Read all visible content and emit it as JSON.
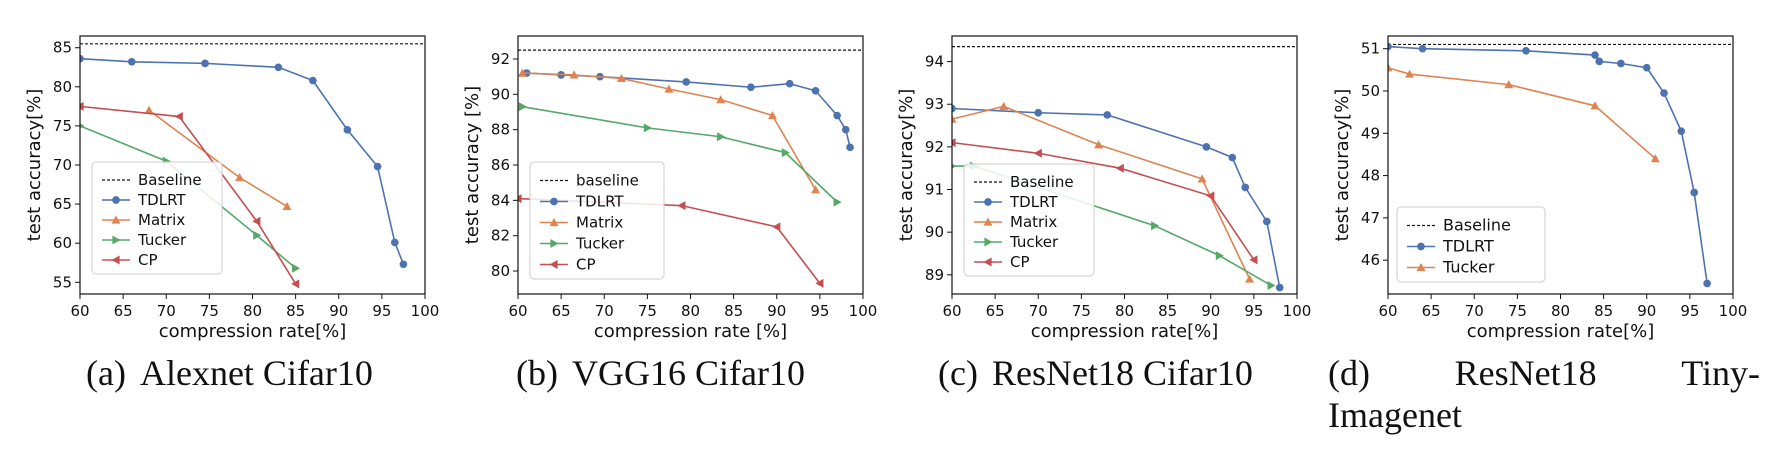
{
  "chart_data": [
    {
      "type": "line",
      "caption_tag": "(a)",
      "caption_text": "Alexnet Cifar10",
      "xlabel": "compression rate[%]",
      "ylabel": "test accuracy[%]",
      "xlim": [
        60,
        100
      ],
      "ylim": [
        53.5,
        86.5
      ],
      "xticks": [
        "60",
        "65",
        "70",
        "75",
        "80",
        "85",
        "90",
        "95",
        "100"
      ],
      "yticks": [
        "55",
        "60",
        "65",
        "70",
        "75",
        "80",
        "85"
      ],
      "legend_position": "lower-left",
      "baseline": {
        "name": "Baseline",
        "value": 85.5
      },
      "series": [
        {
          "name": "TDLRT",
          "color": "#4c72b0",
          "marker": "circle",
          "x": [
            60,
            66,
            74.5,
            83,
            87,
            91,
            94.5,
            96.5,
            97.5
          ],
          "y": [
            83.6,
            83.2,
            83.0,
            82.5,
            80.8,
            74.5,
            69.8,
            60.1,
            57.3
          ]
        },
        {
          "name": "Matrix",
          "color": "#dd8452",
          "marker": "triangle-up",
          "x": [
            68,
            78.5,
            84
          ],
          "y": [
            77.0,
            68.4,
            64.7
          ]
        },
        {
          "name": "Tucker",
          "color": "#55a868",
          "marker": "triangle-right",
          "x": [
            60,
            70,
            80.5,
            85
          ],
          "y": [
            75.0,
            70.5,
            61.0,
            56.8
          ]
        },
        {
          "name": "CP",
          "color": "#c44e52",
          "marker": "triangle-left",
          "x": [
            60,
            71.5,
            80.5,
            85
          ],
          "y": [
            77.5,
            76.2,
            62.8,
            54.8
          ]
        }
      ]
    },
    {
      "type": "line",
      "caption_tag": "(b)",
      "caption_text": "VGG16 Cifar10",
      "xlabel": "compression rate [%]",
      "ylabel": "test accuracy [%]",
      "xlim": [
        60,
        100
      ],
      "ylim": [
        78.7,
        93.3
      ],
      "xticks": [
        "60",
        "65",
        "70",
        "75",
        "80",
        "85",
        "90",
        "95",
        "100"
      ],
      "yticks": [
        "80",
        "82",
        "84",
        "86",
        "88",
        "90",
        "92"
      ],
      "legend_position": "lower-left",
      "baseline": {
        "name": "baseline",
        "value": 92.5
      },
      "series": [
        {
          "name": "TDLRT",
          "color": "#4c72b0",
          "marker": "circle",
          "x": [
            61,
            65,
            69.5,
            79.5,
            87,
            91.5,
            94.5,
            97,
            98,
            98.5
          ],
          "y": [
            91.2,
            91.1,
            91.0,
            90.7,
            90.4,
            90.6,
            90.2,
            88.8,
            88.0,
            87.0
          ],
          "labels": []
        },
        {
          "name": "Matrix",
          "color": "#dd8452",
          "marker": "triangle-up",
          "x": [
            60.5,
            66.5,
            72,
            77.5,
            83.5,
            89.5,
            94.5
          ],
          "y": [
            91.2,
            91.1,
            90.9,
            90.3,
            89.7,
            88.8,
            84.6
          ]
        },
        {
          "name": "Tucker",
          "color": "#55a868",
          "marker": "triangle-right",
          "x": [
            60.5,
            75,
            83.5,
            91,
            97
          ],
          "y": [
            89.3,
            88.1,
            87.6,
            86.7,
            83.9
          ]
        },
        {
          "name": "CP",
          "color": "#c44e52",
          "marker": "triangle-left",
          "x": [
            60,
            79,
            90,
            95
          ],
          "y": [
            84.1,
            83.7,
            82.5,
            79.3
          ]
        }
      ]
    },
    {
      "type": "line",
      "caption_tag": "(c)",
      "caption_text": "ResNet18 Cifar10",
      "xlabel": "compression rate[%]",
      "ylabel": "test accuracy[%]",
      "xlim": [
        60,
        100
      ],
      "ylim": [
        88.55,
        94.6
      ],
      "xticks": [
        "60",
        "65",
        "70",
        "75",
        "80",
        "85",
        "90",
        "95",
        "100"
      ],
      "yticks": [
        "89",
        "90",
        "91",
        "92",
        "93",
        "94"
      ],
      "legend_position": "lower-left",
      "baseline": {
        "name": "Baseline",
        "value": 94.35
      },
      "series": [
        {
          "name": "TDLRT",
          "color": "#4c72b0",
          "marker": "circle",
          "x": [
            60,
            70,
            78,
            89.5,
            92.5,
            94,
            96.5,
            98
          ],
          "y": [
            92.9,
            92.8,
            92.75,
            92.0,
            91.75,
            91.05,
            90.25,
            88.7
          ]
        },
        {
          "name": "Matrix",
          "color": "#dd8452",
          "marker": "triangle-up",
          "x": [
            60,
            66,
            77,
            89,
            94.5
          ],
          "y": [
            92.65,
            92.95,
            92.05,
            91.25,
            88.9
          ]
        },
        {
          "name": "Tucker",
          "color": "#55a868",
          "marker": "triangle-right",
          "x": [
            60,
            62.5,
            83.5,
            91,
            97
          ],
          "y": [
            91.55,
            91.55,
            90.15,
            89.45,
            88.75
          ]
        },
        {
          "name": "CP",
          "color": "#c44e52",
          "marker": "triangle-left",
          "x": [
            60,
            70,
            79.5,
            90,
            95
          ],
          "y": [
            92.1,
            91.85,
            91.5,
            90.85,
            89.35
          ]
        }
      ]
    },
    {
      "type": "line",
      "caption_tag": "(d)",
      "caption_text": "ResNet18 Tiny-Imagenet",
      "caption_words": [
        "ResNet18",
        "Tiny-",
        "Imagenet"
      ],
      "xlabel": "compression rate[%]",
      "ylabel": "test accuracy[%]",
      "xlim": [
        60,
        100
      ],
      "ylim": [
        45.2,
        51.3
      ],
      "xticks": [
        "60",
        "65",
        "70",
        "75",
        "80",
        "85",
        "90",
        "95",
        "100"
      ],
      "yticks": [
        "46",
        "47",
        "48",
        "49",
        "50",
        "51"
      ],
      "legend_position": "lower-left",
      "baseline": {
        "name": "Baseline",
        "value": 51.1
      },
      "series": [
        {
          "name": "TDLRT",
          "color": "#4c72b0",
          "marker": "circle",
          "x": [
            60,
            64,
            76,
            84,
            84.5,
            87,
            90,
            92,
            94,
            95.5,
            97
          ],
          "y": [
            51.05,
            51.0,
            50.95,
            50.85,
            50.7,
            50.65,
            50.55,
            49.95,
            49.05,
            47.6,
            45.45
          ]
        },
        {
          "name": "Tucker",
          "color": "#dd8452",
          "marker": "triangle-up",
          "x": [
            60,
            62.5,
            74,
            84,
            91
          ],
          "y": [
            50.55,
            50.4,
            50.15,
            49.65,
            48.4
          ]
        }
      ]
    }
  ]
}
